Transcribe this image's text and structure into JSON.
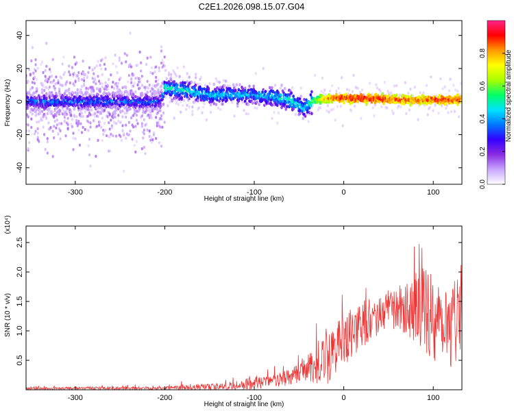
{
  "title": "C2E1.2026.098.15.07.G04",
  "chart_data": [
    {
      "type": "heatmap",
      "xlabel": "Height of straight line (km)",
      "ylabel": "Frequency (Hz)",
      "xlim": [
        -355,
        132
      ],
      "ylim": [
        -50,
        49
      ],
      "x_ticks": [
        -300,
        -200,
        -100,
        0,
        100
      ],
      "x_tick_labels": [
        "-300",
        "-200",
        "-100",
        "0",
        "100"
      ],
      "y_ticks": [
        -40,
        -20,
        0,
        20,
        40
      ],
      "y_tick_labels": [
        "-40",
        "-20",
        "0",
        "20",
        "40"
      ],
      "colorbar": {
        "label": "Normalized spectral amplitude",
        "range": [
          0,
          1
        ],
        "ticks": [
          0.0,
          0.2,
          0.4,
          0.6,
          0.8
        ],
        "tick_labels": [
          "0.0",
          "0.2",
          "0.4",
          "0.6",
          "0.8"
        ],
        "colors": [
          "#ffffff",
          "#c9a6ff",
          "#8a2be2",
          "#3300ff",
          "#0077ff",
          "#00e5ff",
          "#00ff66",
          "#aaff00",
          "#ffff00",
          "#ff9900",
          "#ff0000",
          "#ff2288"
        ]
      },
      "ridge": {
        "x": [
          -355,
          -300,
          -250,
          -205,
          -200,
          -180,
          -150,
          -120,
          -100,
          -80,
          -60,
          -45,
          -35,
          -20,
          0,
          30,
          60,
          90,
          110,
          132
        ],
        "center_hz": [
          0,
          0,
          0,
          0,
          8,
          7,
          4,
          4,
          4,
          3,
          1,
          -4,
          0,
          2,
          2,
          2,
          1,
          1,
          1,
          1
        ],
        "amplitude": [
          0.35,
          0.36,
          0.35,
          0.33,
          0.5,
          0.48,
          0.45,
          0.43,
          0.42,
          0.45,
          0.5,
          0.45,
          0.55,
          0.8,
          0.9,
          0.9,
          0.85,
          0.85,
          0.9,
          0.85
        ]
      },
      "grid": false,
      "legend": "colorbar-right"
    },
    {
      "type": "line",
      "xlabel": "Height of straight line (km)",
      "ylabel": "SNR (10 * v/v)",
      "y_multiplier": "(x10⁴)",
      "xlim": [
        -355,
        132
      ],
      "ylim": [
        0,
        2.78
      ],
      "x_ticks": [
        -300,
        -200,
        -100,
        0,
        100
      ],
      "x_tick_labels": [
        "-300",
        "-200",
        "-100",
        "0",
        "100"
      ],
      "y_ticks": [
        0.5,
        1.0,
        1.5,
        2.0,
        2.5
      ],
      "y_tick_labels": [
        "0.5",
        "1.0",
        "1.5",
        "2.0",
        "2.5"
      ],
      "line_color": "#ee3333",
      "envelope": {
        "x": [
          -355,
          -200,
          -180,
          -150,
          -120,
          -100,
          -80,
          -60,
          -40,
          -30,
          -20,
          -10,
          0,
          20,
          40,
          60,
          80,
          100,
          110,
          120,
          132
        ],
        "base": [
          0.02,
          0.03,
          0.04,
          0.05,
          0.07,
          0.12,
          0.15,
          0.2,
          0.35,
          0.45,
          0.55,
          0.7,
          0.85,
          1.1,
          1.3,
          1.4,
          1.4,
          1.3,
          1.2,
          1.15,
          1.25
        ],
        "spread": [
          0.02,
          0.03,
          0.06,
          0.05,
          0.08,
          0.12,
          0.1,
          0.15,
          0.25,
          0.35,
          0.5,
          0.45,
          0.45,
          0.4,
          0.35,
          0.35,
          0.6,
          0.85,
          0.7,
          0.8,
          0.6
        ]
      },
      "grid": false
    }
  ]
}
